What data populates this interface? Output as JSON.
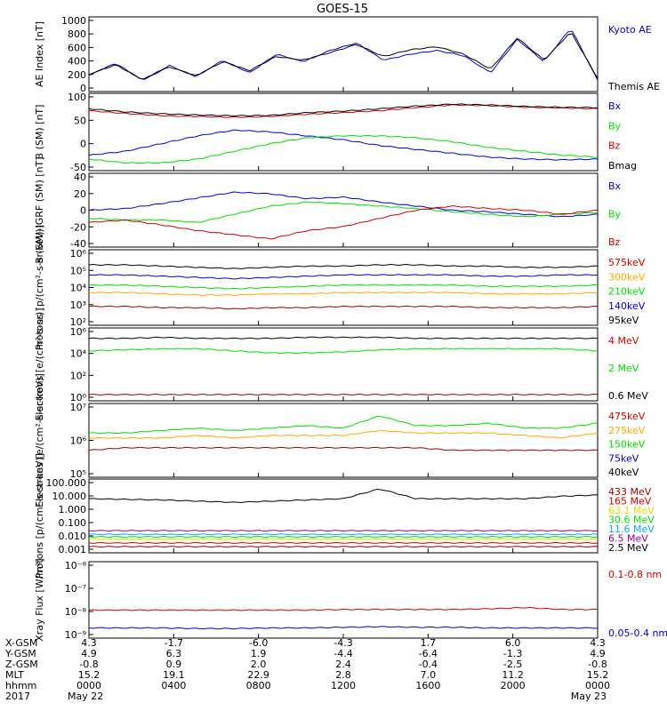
{
  "title": "GOES-15",
  "colors": {
    "black": "#000000",
    "blue": "#0000cc",
    "green": "#00dd00",
    "red": "#cc0000",
    "darkred": "#990000",
    "orange": "#ffaa00",
    "yellow": "#dddd00",
    "cyan": "#00aaff",
    "navy": "#000080",
    "darkblue": "#0000aa",
    "purple": "#990099"
  },
  "chart_data": [
    {
      "type": "line",
      "ylabel": "AE Index [nT]",
      "ylim": [
        0,
        1000
      ],
      "yticks": [
        "1000",
        "800",
        "600",
        "400",
        "200",
        "0"
      ],
      "legend": [
        {
          "name": "Kyoto AE",
          "color": "#0000cc"
        },
        {
          "name": "Themis AE",
          "color": "#000000"
        }
      ],
      "series": [
        {
          "name": "Kyoto AE",
          "color": "#0000cc",
          "values": [
            220,
            380,
            150,
            350,
            200,
            420,
            250,
            500,
            400,
            550,
            650,
            420,
            500,
            550,
            480,
            250,
            700,
            400,
            850,
            150
          ]
        },
        {
          "name": "Themis AE",
          "color": "#000000",
          "values": [
            230,
            360,
            160,
            330,
            210,
            400,
            280,
            470,
            420,
            520,
            630,
            470,
            560,
            600,
            500,
            300,
            720,
            420,
            800,
            180
          ]
        }
      ]
    },
    {
      "type": "line",
      "ylabel": "B (SM) [nT]",
      "ylim": [
        -60,
        140
      ],
      "yticks": [
        "100",
        "50",
        "0",
        "-50"
      ],
      "legend": [
        {
          "name": "Bx",
          "color": "#0000cc"
        },
        {
          "name": "By",
          "color": "#00dd00"
        },
        {
          "name": "Bz",
          "color": "#cc0000"
        },
        {
          "name": "Bmag",
          "color": "#000000"
        }
      ],
      "series": [
        {
          "name": "Bz",
          "color": "#cc0000",
          "values": [
            95,
            88,
            82,
            80,
            78,
            80,
            86,
            90,
            95,
            103,
            110,
            108,
            104,
            102,
            100
          ]
        },
        {
          "name": "Bmag",
          "color": "#000000",
          "values": [
            100,
            92,
            87,
            84,
            82,
            83,
            90,
            94,
            100,
            107,
            112,
            110,
            106,
            104,
            103
          ]
        },
        {
          "name": "Bx",
          "color": "#0000cc",
          "values": [
            -20,
            -10,
            10,
            30,
            45,
            40,
            30,
            20,
            5,
            -5,
            -15,
            -25,
            -30,
            -32,
            -30
          ]
        },
        {
          "name": "By",
          "color": "#00dd00",
          "values": [
            -30,
            -40,
            -40,
            -30,
            -10,
            10,
            25,
            30,
            30,
            25,
            15,
            0,
            -10,
            -20,
            -25
          ]
        }
      ]
    },
    {
      "type": "line",
      "ylabel": "B (SM)-IGRF (SM) [nT]",
      "ylim": [
        -45,
        45
      ],
      "yticks": [
        "40",
        "20",
        "0",
        "-20",
        "-40"
      ],
      "legend": [
        {
          "name": "Bx",
          "color": "#0000cc"
        },
        {
          "name": "By",
          "color": "#00dd00"
        },
        {
          "name": "Bz",
          "color": "#cc0000"
        }
      ],
      "series": [
        {
          "name": "Bx",
          "color": "#0000cc",
          "values": [
            0,
            2,
            8,
            15,
            22,
            20,
            14,
            16,
            10,
            5,
            0,
            -2,
            -5,
            -8,
            -5
          ]
        },
        {
          "name": "By",
          "color": "#00dd00",
          "values": [
            -10,
            -12,
            -12,
            -15,
            -5,
            5,
            10,
            8,
            5,
            2,
            -2,
            -5,
            -8,
            -5,
            -3
          ]
        },
        {
          "name": "Bz",
          "color": "#cc0000",
          "values": [
            -15,
            -12,
            -18,
            -25,
            -30,
            -35,
            -25,
            -20,
            -10,
            0,
            5,
            2,
            0,
            -5,
            0
          ]
        }
      ]
    },
    {
      "type": "line",
      "ylabel": "Protons [p/(cm²-s-sr-keV)]",
      "yscale": "log",
      "ylim": [
        1,
        7
      ],
      "yticks": [
        "10⁶",
        "10⁵",
        "10⁴",
        "10³",
        "10²"
      ],
      "legend": [
        {
          "name": "575keV",
          "color": "#cc0000"
        },
        {
          "name": "300keV",
          "color": "#ffaa00"
        },
        {
          "name": "210keV",
          "color": "#00dd00"
        },
        {
          "name": "140keV",
          "color": "#0000cc"
        },
        {
          "name": "95keV",
          "color": "#000000"
        }
      ],
      "series": [
        {
          "name": "95keV",
          "color": "#000000",
          "values": [
            5.8,
            5.8,
            5.7,
            5.6,
            5.5,
            5.6,
            5.7,
            5.7,
            5.8,
            5.8,
            5.7,
            5.7,
            5.6,
            5.6,
            5.7
          ]
        },
        {
          "name": "140keV",
          "color": "#0000cc",
          "values": [
            5.0,
            5.0,
            4.9,
            4.8,
            4.7,
            4.8,
            4.9,
            5.0,
            5.0,
            5.0,
            5.0,
            4.9,
            4.9,
            5.0,
            5.0
          ]
        },
        {
          "name": "210keV",
          "color": "#00dd00",
          "values": [
            4.2,
            4.2,
            4.1,
            4.0,
            3.9,
            4.0,
            4.1,
            4.2,
            4.2,
            4.2,
            4.2,
            4.1,
            4.1,
            4.1,
            4.2
          ]
        },
        {
          "name": "300keV",
          "color": "#ffaa00",
          "values": [
            3.6,
            3.6,
            3.5,
            3.4,
            3.4,
            3.5,
            3.5,
            3.6,
            3.6,
            3.6,
            3.6,
            3.5,
            3.5,
            3.5,
            3.6
          ]
        },
        {
          "name": "575keV",
          "color": "#990000",
          "values": [
            2.5,
            2.5,
            2.4,
            2.4,
            2.3,
            2.4,
            2.4,
            2.5,
            2.5,
            2.5,
            2.5,
            2.4,
            2.4,
            2.4,
            2.5
          ]
        }
      ]
    },
    {
      "type": "line",
      "ylabel": "Electrons [e/(cm²-s-sr)]",
      "yscale": "log",
      "ylim": [
        0,
        7
      ],
      "yticks": [
        "10⁶",
        "10⁴",
        "10²",
        "10⁰"
      ],
      "legend": [
        {
          "name": "4 MeV",
          "color": "#cc0000"
        },
        {
          "name": "2 MeV",
          "color": "#00dd00"
        },
        {
          "name": "0.6 MeV",
          "color": "#000000"
        }
      ],
      "series": [
        {
          "name": "0.6 MeV",
          "color": "#000000",
          "values": [
            6.0,
            6.0,
            6.1,
            6.0,
            6.0,
            6.0,
            6.1,
            6.1,
            6.1,
            6.0,
            6.0,
            6.0,
            6.0,
            6.0,
            6.0
          ]
        },
        {
          "name": "2 MeV",
          "color": "#00dd00",
          "values": [
            4.8,
            4.9,
            5.0,
            5.0,
            4.8,
            4.6,
            4.6,
            4.7,
            4.9,
            5.0,
            5.0,
            5.0,
            5.0,
            5.0,
            4.8
          ]
        },
        {
          "name": "4 MeV",
          "color": "#990000",
          "values": [
            0.6,
            0.6,
            0.6,
            0.6,
            0.6,
            0.6,
            0.6,
            0.6,
            0.6,
            0.6,
            0.6,
            0.6,
            0.6,
            0.6,
            0.6
          ]
        }
      ]
    },
    {
      "type": "line",
      "ylabel": "Electrons [e/(cm²-s-sr-keV)]",
      "yscale": "log",
      "ylim": [
        4,
        7
      ],
      "yticks": [
        "10⁷",
        "10⁶",
        "10⁵"
      ],
      "legend": [
        {
          "name": "475keV",
          "color": "#cc0000"
        },
        {
          "name": "275keV",
          "color": "#ffaa00"
        },
        {
          "name": "150keV",
          "color": "#00dd00"
        },
        {
          "name": "75keV",
          "color": "#0000cc"
        },
        {
          "name": "40keV",
          "color": "#000000"
        }
      ],
      "series": [
        {
          "name": "150keV",
          "color": "#00dd00",
          "values": [
            5.8,
            5.8,
            5.9,
            6.0,
            5.9,
            6.0,
            6.1,
            6.0,
            6.5,
            6.1,
            6.1,
            6.2,
            6.0,
            6.0,
            6.2
          ]
        },
        {
          "name": "275keV",
          "color": "#ffaa00",
          "values": [
            5.6,
            5.6,
            5.6,
            5.7,
            5.6,
            5.7,
            5.7,
            5.7,
            5.9,
            5.8,
            5.8,
            5.8,
            5.7,
            5.6,
            5.8
          ]
        },
        {
          "name": "475keV",
          "color": "#990000",
          "values": [
            5.1,
            5.2,
            5.2,
            5.2,
            5.2,
            5.2,
            5.2,
            5.2,
            5.2,
            5.2,
            5.1,
            5.1,
            5.1,
            5.1,
            5.1
          ]
        }
      ]
    },
    {
      "type": "line",
      "ylabel": "Protons [p/(cm²-s-sr-keV)]",
      "yscale": "log",
      "ylim": [
        -3,
        3
      ],
      "yticks": [
        "100.000",
        "10.000",
        "1.000",
        "0.100",
        "0.010",
        "0.001"
      ],
      "legend": [
        {
          "name": "433 MeV",
          "color": "#990000"
        },
        {
          "name": "165 MeV",
          "color": "#cc0000"
        },
        {
          "name": "63.1 MeV",
          "color": "#dddd00"
        },
        {
          "name": "30.6 MeV",
          "color": "#00dd00"
        },
        {
          "name": "11.6 MeV",
          "color": "#00aaff"
        },
        {
          "name": "6.5 MeV",
          "color": "#990099"
        },
        {
          "name": "2.5 MeV",
          "color": "#000000"
        }
      ],
      "series": [
        {
          "name": "2.5 MeV",
          "color": "#000000",
          "values": [
            1.4,
            1.35,
            1.3,
            1.2,
            1.1,
            1.2,
            1.3,
            1.4,
            2.2,
            1.4,
            1.4,
            1.4,
            1.4,
            1.6,
            1.7
          ]
        },
        {
          "name": "6.5 MeV",
          "color": "#990099",
          "values": [
            -1.2,
            -1.2,
            -1.2,
            -1.2,
            -1.2,
            -1.2,
            -1.2,
            -1.2,
            -1.2,
            -1.2,
            -1.2,
            -1.2,
            -1.2,
            -1.2,
            -1.2
          ]
        },
        {
          "name": "11.6 MeV",
          "color": "#00aaff",
          "values": [
            -1.5,
            -1.5,
            -1.5,
            -1.5,
            -1.5,
            -1.5,
            -1.5,
            -1.5,
            -1.5,
            -1.5,
            -1.5,
            -1.5,
            -1.5,
            -1.5,
            -1.5
          ]
        },
        {
          "name": "30.6 MeV",
          "color": "#00dd00",
          "values": [
            -1.7,
            -1.7,
            -1.7,
            -1.7,
            -1.7,
            -1.7,
            -1.7,
            -1.7,
            -1.7,
            -1.7,
            -1.7,
            -1.7,
            -1.7,
            -1.7,
            -1.7
          ]
        },
        {
          "name": "63.1 MeV",
          "color": "#dddd00",
          "values": [
            -1.9,
            -1.9,
            -1.9,
            -1.9,
            -1.9,
            -1.9,
            -1.9,
            -1.9,
            -1.9,
            -1.9,
            -1.9,
            -1.9,
            -1.9,
            -1.9,
            -1.9
          ]
        },
        {
          "name": "165 MeV",
          "color": "#cc0000",
          "values": [
            -2.2,
            -2.2,
            -2.2,
            -2.2,
            -2.2,
            -2.2,
            -2.2,
            -2.2,
            -2.2,
            -2.2,
            -2.2,
            -2.2,
            -2.2,
            -2.2,
            -2.2
          ]
        },
        {
          "name": "433 MeV",
          "color": "#990000",
          "values": [
            -2.5,
            -2.5,
            -2.5,
            -2.5,
            -2.5,
            -2.5,
            -2.5,
            -2.5,
            -2.5,
            -2.5,
            -2.5,
            -2.5,
            -2.5,
            -2.5,
            -2.5
          ]
        }
      ]
    },
    {
      "type": "line",
      "ylabel": "Xray Flux [W/m²]",
      "yscale": "log",
      "ylim": [
        -9,
        -3
      ],
      "yticks": [
        "10⁻⁸",
        "10⁻⁷",
        "10⁻⁸",
        "10⁻⁹"
      ],
      "legend": [
        {
          "name": "0.1-0.8 nm",
          "color": "#cc0000"
        },
        {
          "name": "0.05-0.4 nm",
          "color": "#0000cc"
        }
      ],
      "series": [
        {
          "name": "0.1-0.8 nm",
          "color": "#cc0000",
          "values": [
            -6.8,
            -6.8,
            -6.8,
            -6.8,
            -6.8,
            -6.8,
            -6.8,
            -6.75,
            -6.75,
            -6.75,
            -6.75,
            -6.7,
            -6.6,
            -6.75,
            -6.75
          ]
        },
        {
          "name": "0.05-0.4 nm",
          "color": "#0000cc",
          "values": [
            -8.2,
            -8.2,
            -8.2,
            -8.25,
            -8.25,
            -8.2,
            -8.2,
            -8.15,
            -8.1,
            -8.15,
            -8.15,
            -8.2,
            -8.2,
            -8.2,
            -8.2
          ]
        }
      ]
    }
  ],
  "axis_table": {
    "rows": [
      {
        "label": "X-GSM",
        "values": [
          "4.3",
          "-1.7",
          "-6.0",
          "-4.3",
          "1.7",
          "6.0",
          "4.3"
        ]
      },
      {
        "label": "Y-GSM",
        "values": [
          "4.9",
          "6.3",
          "1.9",
          "-4.4",
          "-6.4",
          "-1.3",
          "4.9"
        ]
      },
      {
        "label": "Z-GSM",
        "values": [
          "-0.8",
          "0.9",
          "2.0",
          "2.4",
          "-0.4",
          "-2.5",
          "-0.8"
        ]
      },
      {
        "label": "MLT",
        "values": [
          "15.2",
          "19.1",
          "22.9",
          "2.8",
          "7.0",
          "11.2",
          "15.2"
        ]
      },
      {
        "label": "hhmm",
        "values": [
          "0000",
          "0400",
          "0800",
          "1200",
          "1600",
          "2000",
          "0000"
        ]
      },
      {
        "label": "2017",
        "values": [
          "May 22",
          "",
          "",
          "",
          "",
          "",
          "May 23"
        ]
      }
    ]
  }
}
